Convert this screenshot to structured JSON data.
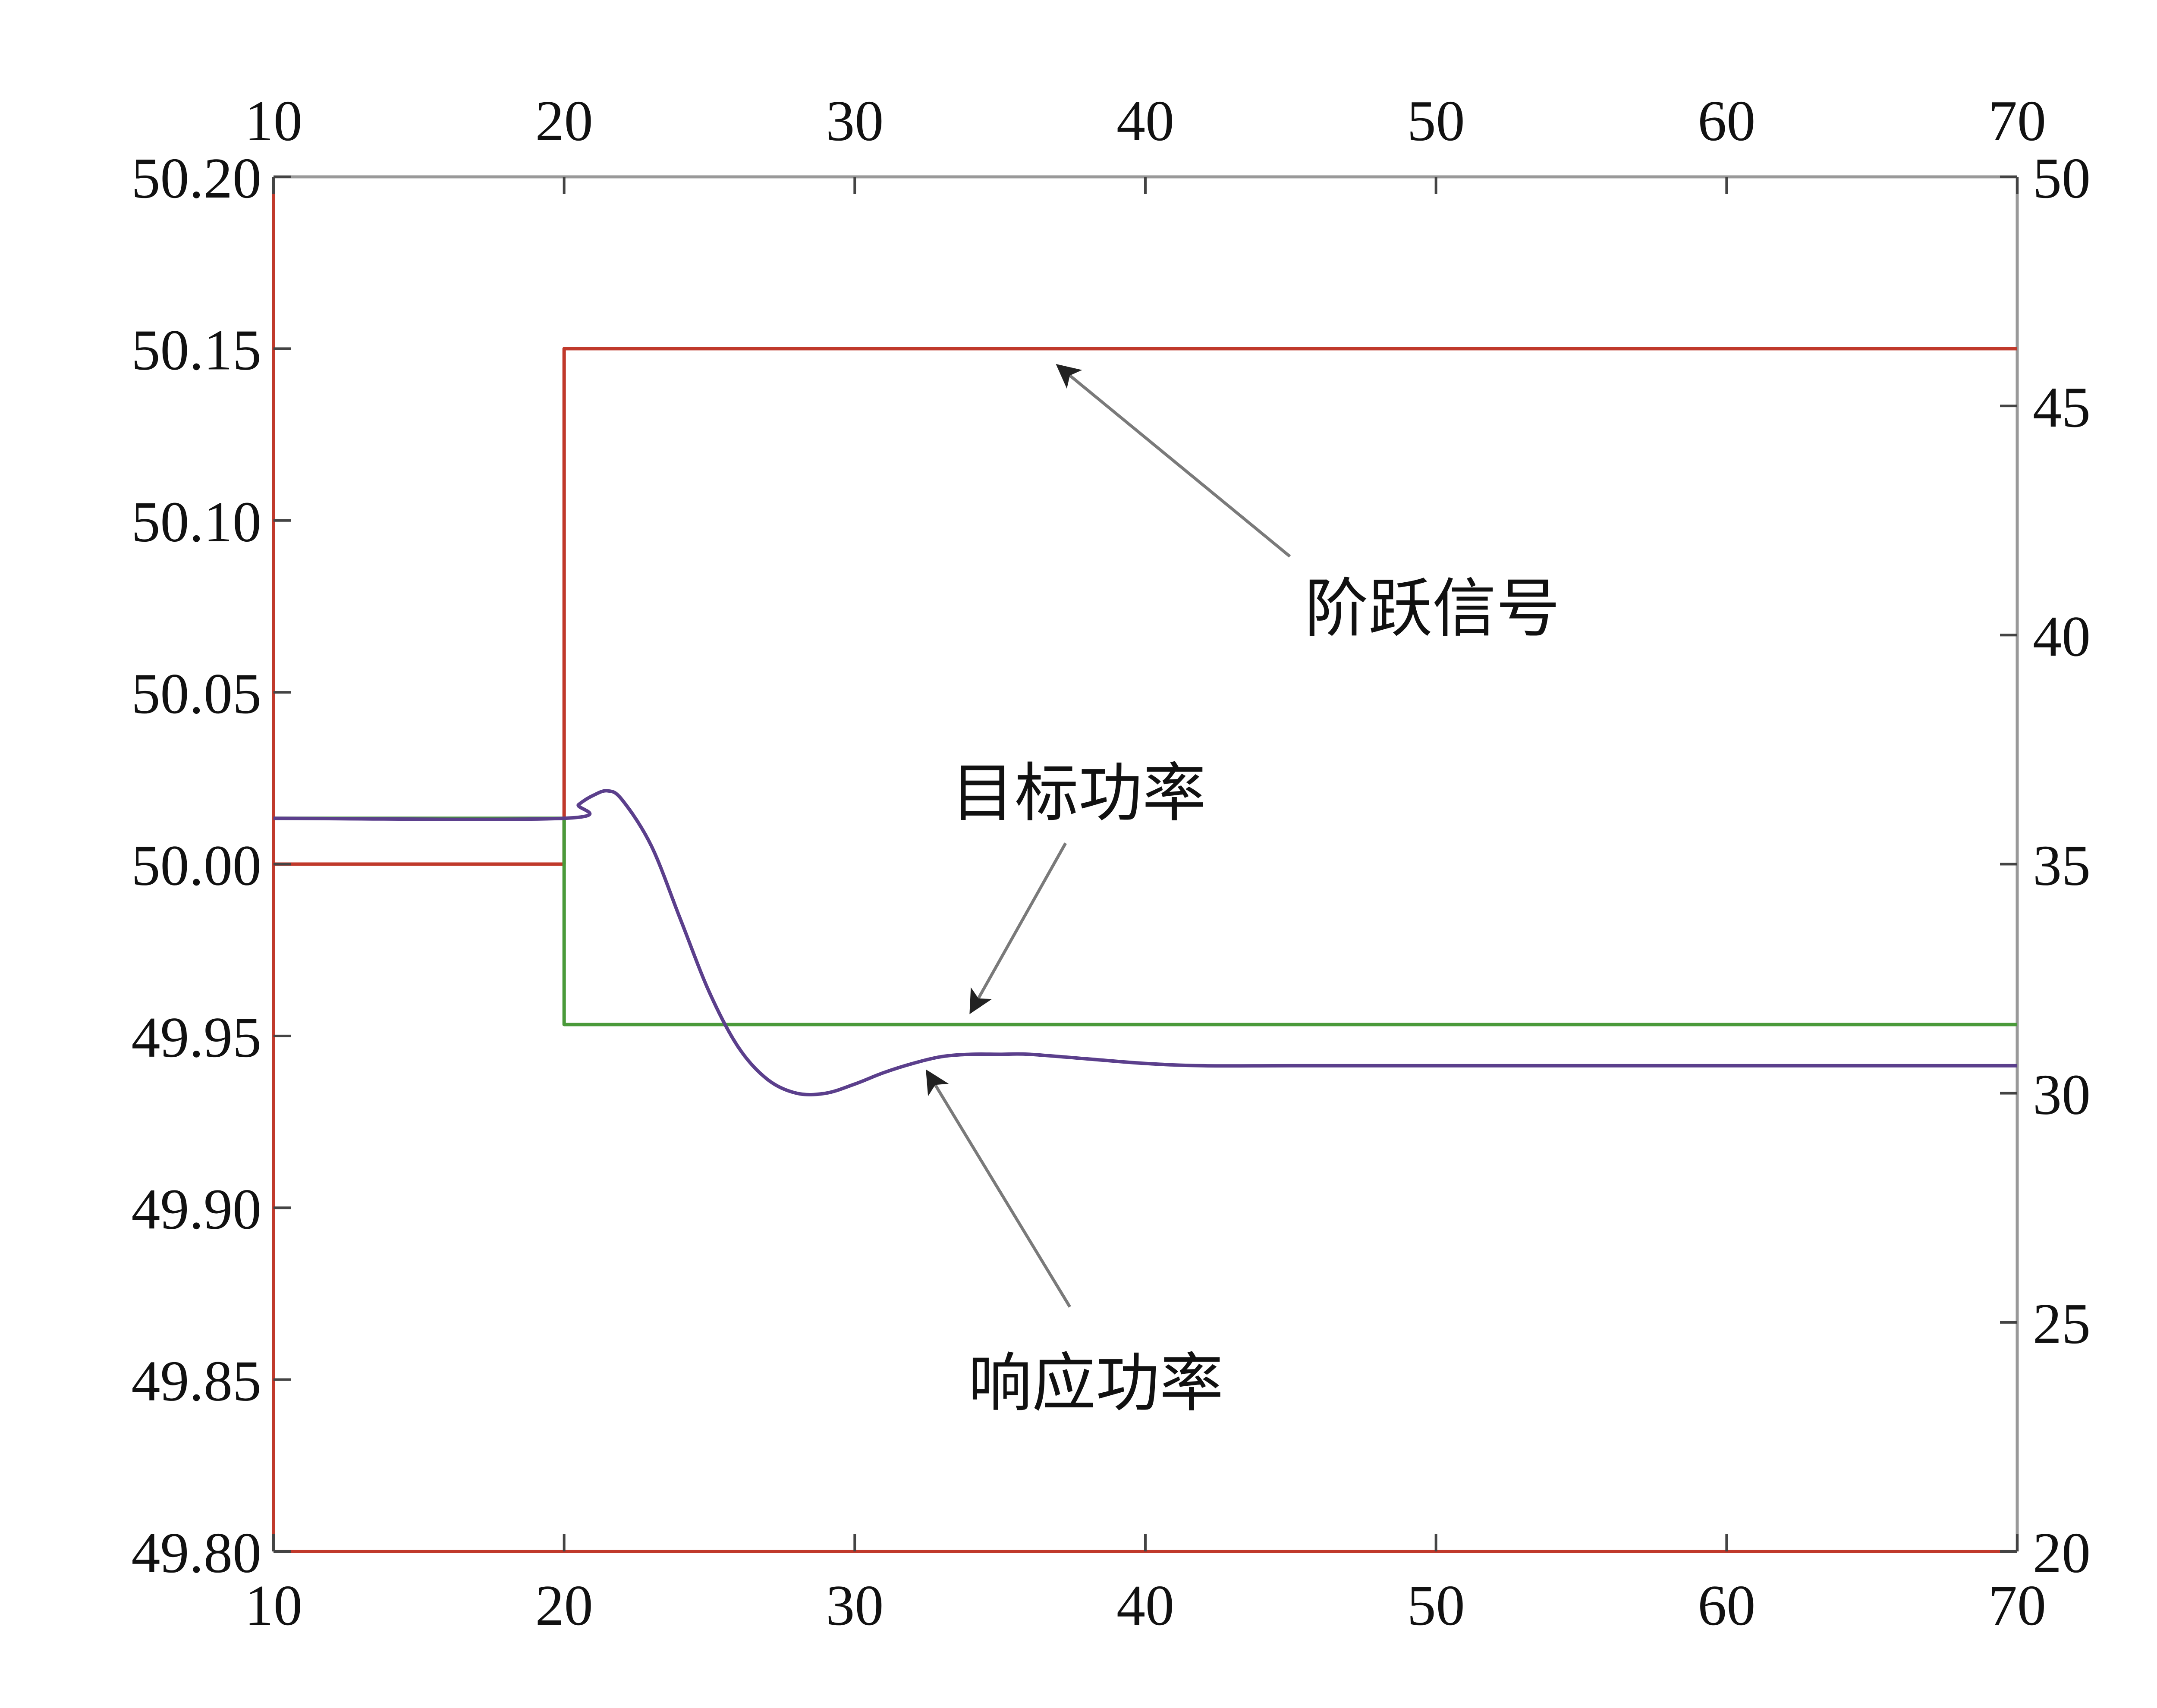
{
  "chart_data": {
    "type": "line",
    "title": "",
    "xlabel": "",
    "ylabel": "",
    "y2label": "",
    "xlim": [
      10,
      70
    ],
    "ylim": [
      49.8,
      50.2
    ],
    "y2lim": [
      20,
      50
    ],
    "x_ticks": [
      "10",
      "20",
      "30",
      "40",
      "50",
      "60",
      "70"
    ],
    "y_ticks": [
      "49.80",
      "49.85",
      "49.90",
      "49.95",
      "50.00",
      "50.05",
      "50.10",
      "50.15",
      "50.20"
    ],
    "y2_ticks": [
      "20",
      "25",
      "30",
      "35",
      "40",
      "45",
      "50"
    ],
    "grid": false,
    "legend": "none",
    "series": [
      {
        "name": "阶跃信号",
        "axis": "left",
        "color": "#c0392b",
        "x": [
          10,
          20,
          20,
          70
        ],
        "y": [
          50.0,
          50.0,
          50.15,
          50.15
        ]
      },
      {
        "name": "目标功率",
        "axis": "right",
        "color": "#4a9a3a",
        "x": [
          10,
          20,
          20,
          70
        ],
        "y": [
          36.0,
          36.0,
          31.5,
          31.5
        ]
      },
      {
        "name": "响应功率",
        "axis": "right",
        "color": "#5b3f8c",
        "x": [
          10,
          20,
          20.5,
          21,
          21.5,
          22,
          23,
          24,
          25,
          26,
          27,
          28,
          29,
          30,
          31,
          32,
          33,
          34,
          35,
          36,
          38,
          40,
          42,
          45,
          50,
          55,
          60,
          65,
          70
        ],
        "y": [
          36.0,
          36.0,
          36.3,
          36.5,
          36.6,
          36.4,
          35.4,
          33.8,
          32.2,
          31.0,
          30.3,
          30.0,
          30.0,
          30.2,
          30.45,
          30.65,
          30.8,
          30.85,
          30.85,
          30.85,
          30.75,
          30.65,
          30.6,
          30.6,
          30.6,
          30.6,
          30.6,
          30.6,
          30.6
        ]
      }
    ],
    "annotations": [
      {
        "text": "阶跃信号",
        "target_series": "阶跃信号",
        "target_x": 37.0,
        "target_y": 50.15
      },
      {
        "text": "目标功率",
        "target_series": "目标功率",
        "target_x": 34.0,
        "target_y": 31.5
      },
      {
        "text": "响应功率",
        "target_series": "响应功率",
        "target_x": 32.5,
        "target_y": 30.7
      }
    ],
    "frame": {
      "left_axis_color": "#c0392b",
      "bottom_axis_color": "#c0392b",
      "top_axis_color": "#999999",
      "right_axis_color": "#999999",
      "arrow_color": "#7a7a7a"
    }
  }
}
